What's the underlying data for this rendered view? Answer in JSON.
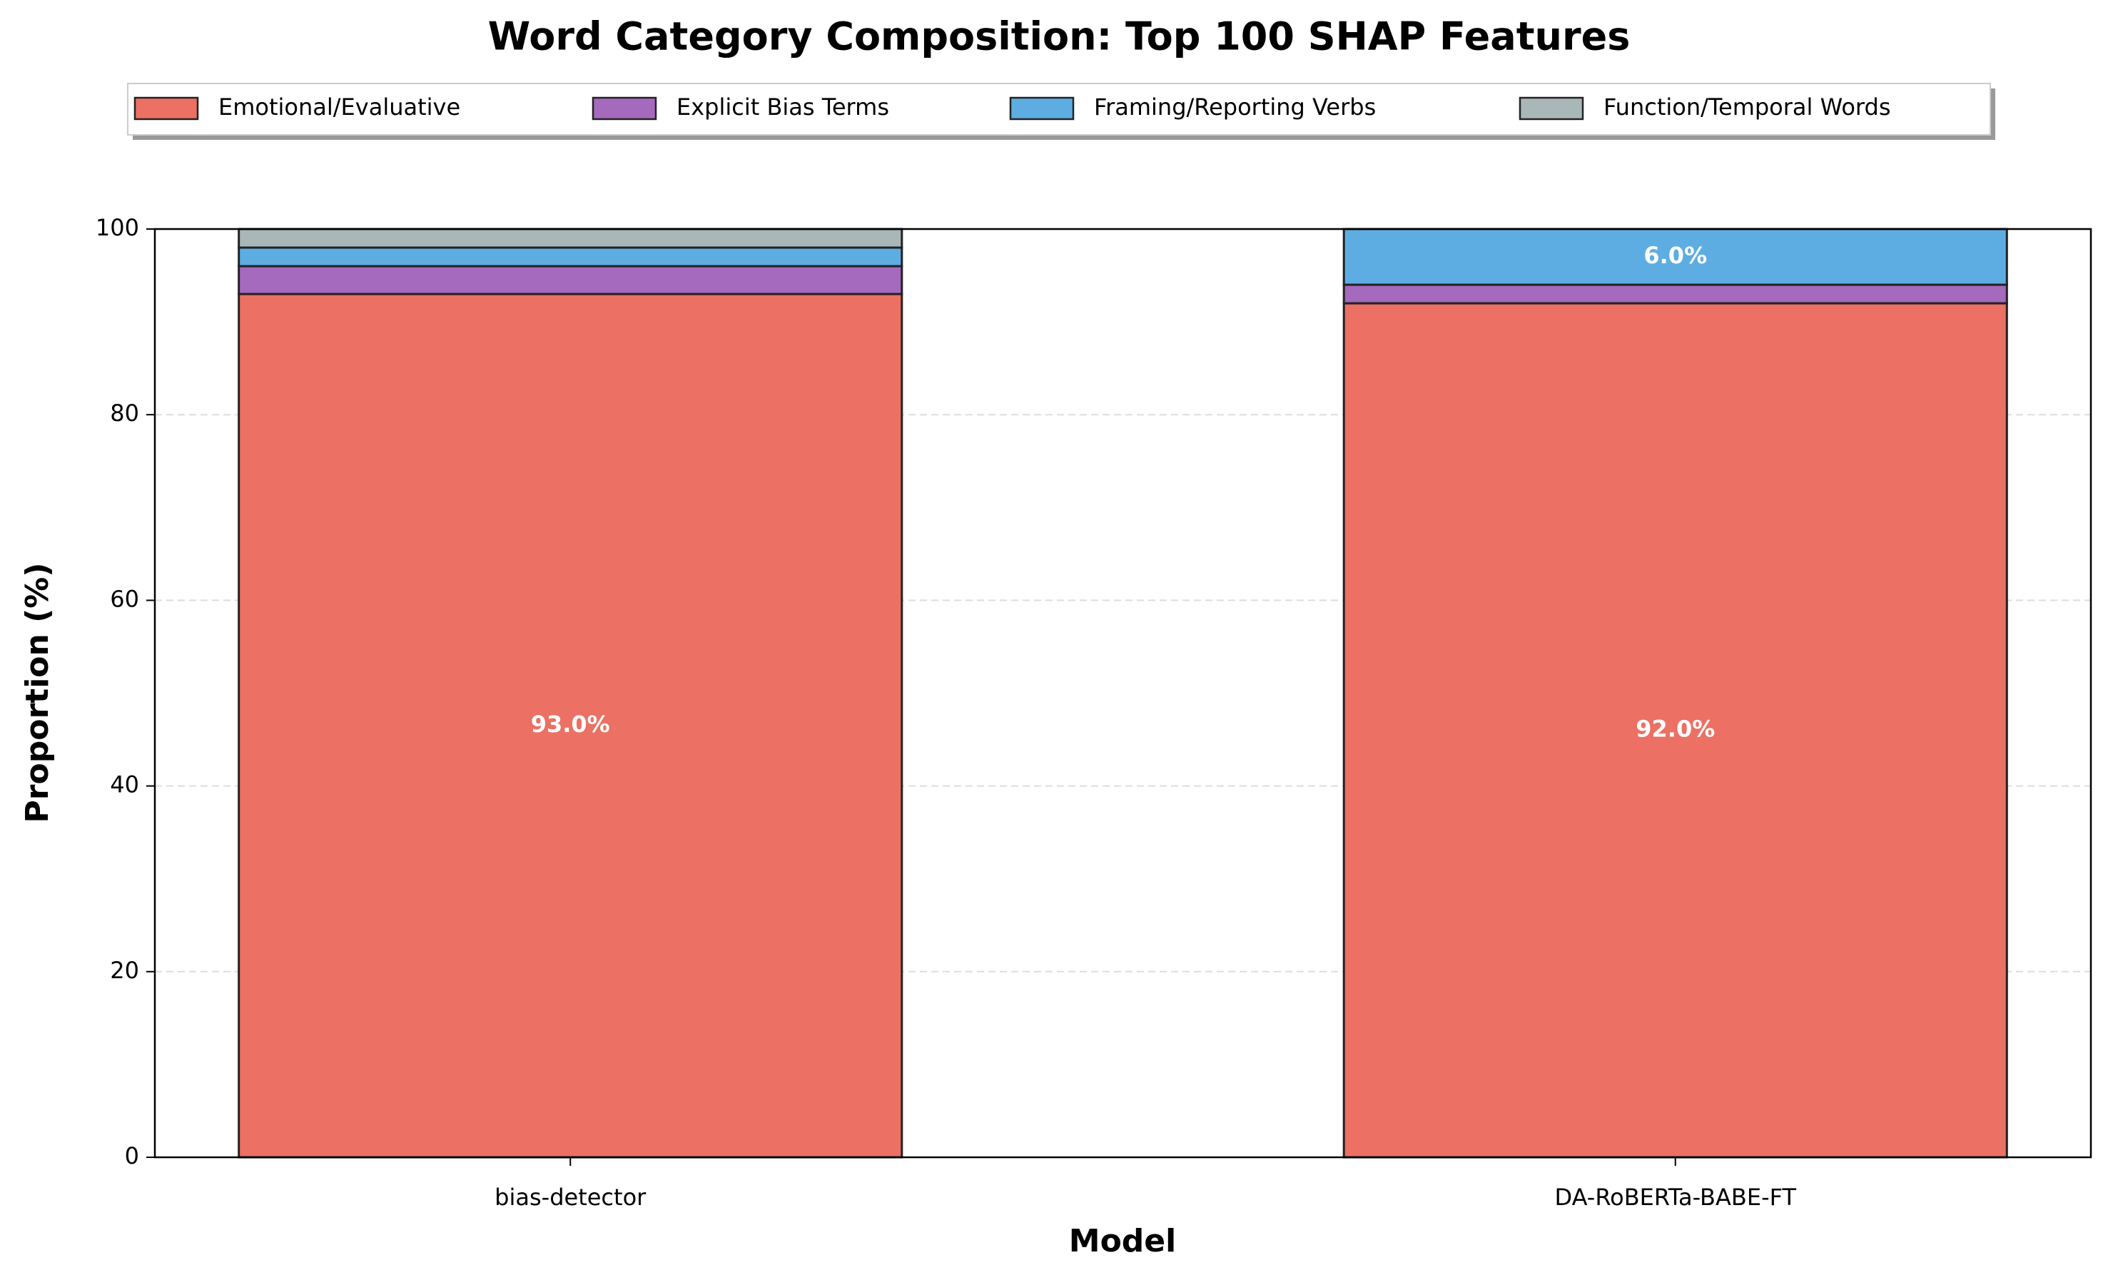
{
  "chart_data": {
    "type": "stacked_bar",
    "title": "Word Category Composition: Top 100 SHAP Features",
    "x_label": "Model",
    "y_label": "Proportion (%)",
    "categories": [
      "bias-detector",
      "DA-RoBERTa-BABE-FT"
    ],
    "series": [
      {
        "name": "Emotional/Evaluative",
        "color": "#ec7063",
        "values": [
          93,
          92
        ],
        "value_labels": [
          "93.0%",
          "92.0%"
        ]
      },
      {
        "name": "Explicit Bias Terms",
        "color": "#a569bd",
        "values": [
          3,
          2
        ],
        "value_labels": [
          null,
          null
        ]
      },
      {
        "name": "Framing/Reporting Verbs",
        "color": "#5dade2",
        "values": [
          2,
          6
        ],
        "value_labels": [
          null,
          "6.0%"
        ]
      },
      {
        "name": "Function/Temporal Words",
        "color": "#aab7b8",
        "values": [
          2,
          0
        ],
        "value_labels": [
          null,
          null
        ]
      }
    ],
    "ylim": [
      0,
      100
    ],
    "yticks": [
      0,
      20,
      40,
      60,
      80,
      100
    ],
    "grid": true,
    "legend": "top"
  }
}
